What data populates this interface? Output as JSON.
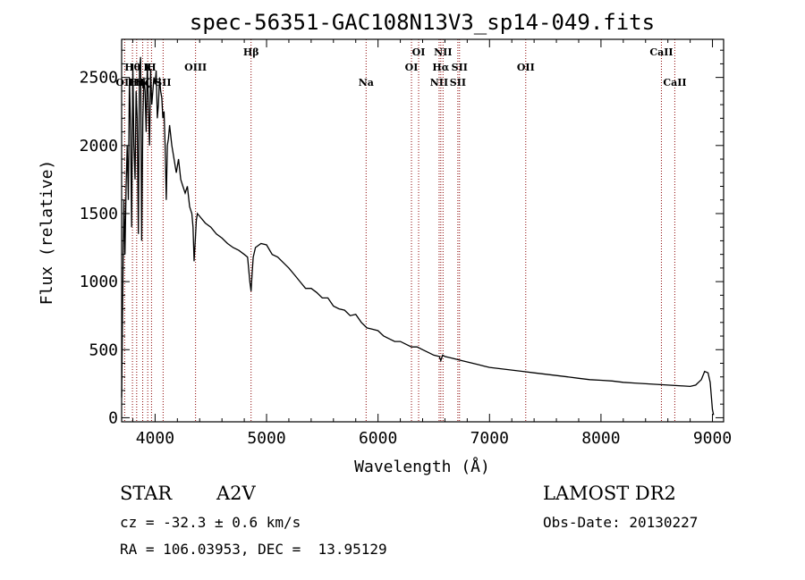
{
  "chart_data": {
    "type": "line",
    "title": "spec-56351-GAC108N13V3_sp14-049.fits",
    "xlabel": "Wavelength (Å)",
    "ylabel": "Flux (relative)",
    "xlim": [
      3700,
      9100
    ],
    "ylim": [
      -30,
      2780
    ],
    "xticks": [
      4000,
      5000,
      6000,
      7000,
      8000,
      9000
    ],
    "yticks": [
      0,
      500,
      1000,
      1500,
      2000,
      2500
    ],
    "grid": false,
    "series": [
      {
        "x": [
          3700,
          3710,
          3720,
          3730,
          3740,
          3750,
          3760,
          3770,
          3780,
          3790,
          3800,
          3810,
          3820,
          3830,
          3840,
          3850,
          3860,
          3870,
          3880,
          3890,
          3900,
          3910,
          3920,
          3930,
          3940,
          3950,
          3960,
          3970,
          3980,
          3990,
          4000,
          4010,
          4020,
          4030,
          4040,
          4050,
          4060,
          4070,
          4080,
          4090,
          4100,
          4110,
          4120,
          4130,
          4150,
          4170,
          4190,
          4210,
          4230,
          4250,
          4270,
          4290,
          4310,
          4330,
          4340,
          4350,
          4360,
          4370,
          4380,
          4400,
          4450,
          4500,
          4550,
          4600,
          4650,
          4700,
          4750,
          4800,
          4830,
          4850,
          4861,
          4870,
          4880,
          4900,
          4950,
          5000,
          5050,
          5100,
          5150,
          5200,
          5250,
          5300,
          5350,
          5400,
          5450,
          5500,
          5550,
          5600,
          5650,
          5700,
          5750,
          5800,
          5850,
          5900,
          5950,
          6000,
          6050,
          6100,
          6150,
          6200,
          6250,
          6300,
          6350,
          6400,
          6450,
          6500,
          6550,
          6563,
          6580,
          6600,
          6650,
          6700,
          6750,
          6800,
          6850,
          6900,
          6950,
          7000,
          7100,
          7200,
          7300,
          7400,
          7500,
          7600,
          7700,
          7800,
          7900,
          8000,
          8100,
          8200,
          8300,
          8400,
          8500,
          8600,
          8700,
          8800,
          8850,
          8900,
          8930,
          8960,
          8980,
          9000,
          9010
        ],
        "y": [
          150,
          900,
          1600,
          1200,
          1700,
          2000,
          1600,
          2500,
          2100,
          1400,
          2600,
          2000,
          1750,
          2400,
          2200,
          1350,
          2550,
          2650,
          1300,
          2200,
          2500,
          2400,
          2100,
          2600,
          2300,
          2000,
          2550,
          2300,
          2400,
          2500,
          2450,
          2550,
          2200,
          2300,
          2500,
          2400,
          2350,
          2200,
          2250,
          2000,
          1600,
          2000,
          2050,
          2150,
          2000,
          1900,
          1800,
          1900,
          1750,
          1700,
          1650,
          1700,
          1550,
          1500,
          1400,
          1150,
          1300,
          1450,
          1500,
          1480,
          1430,
          1400,
          1350,
          1320,
          1280,
          1250,
          1230,
          1200,
          1180,
          1000,
          930,
          1050,
          1180,
          1250,
          1280,
          1270,
          1200,
          1180,
          1140,
          1100,
          1050,
          1000,
          950,
          950,
          920,
          880,
          880,
          820,
          800,
          790,
          750,
          760,
          700,
          660,
          650,
          640,
          600,
          580,
          560,
          560,
          540,
          520,
          520,
          500,
          480,
          460,
          450,
          420,
          460,
          450,
          440,
          430,
          420,
          410,
          400,
          390,
          380,
          370,
          360,
          350,
          340,
          330,
          320,
          310,
          300,
          290,
          280,
          275,
          270,
          260,
          255,
          250,
          245,
          240,
          235,
          230,
          240,
          280,
          340,
          330,
          260,
          60,
          20
        ]
      }
    ],
    "line_markers": [
      {
        "label": "Hθ",
        "wavelength": 3797,
        "row": 1
      },
      {
        "label": "OII",
        "wavelength": 3727,
        "row": 2
      },
      {
        "label": "Hη",
        "wavelength": 3835,
        "row": 2
      },
      {
        "label": "Hζ",
        "wavelength": 3889,
        "row": 2
      },
      {
        "label": "K",
        "wavelength": 3934,
        "row": 1
      },
      {
        "label": "H",
        "wavelength": 3968,
        "row": 1
      },
      {
        "label": "SII",
        "wavelength": 4072,
        "row": 2
      },
      {
        "label": "OIII",
        "wavelength": 4363,
        "row": 1
      },
      {
        "label": "Hβ",
        "wavelength": 4861,
        "row": 0
      },
      {
        "label": "Na",
        "wavelength": 5893,
        "row": 2
      },
      {
        "label": "OI",
        "wavelength": 6300,
        "row": 1
      },
      {
        "label": "OI",
        "wavelength": 6364,
        "row": 0
      },
      {
        "label": "NII",
        "wavelength": 6548,
        "row": 2
      },
      {
        "label": "NII",
        "wavelength": 6583,
        "row": 0
      },
      {
        "label": "Hα",
        "wavelength": 6563,
        "row": 1
      },
      {
        "label": "SII",
        "wavelength": 6716,
        "row": 2
      },
      {
        "label": "SII",
        "wavelength": 6731,
        "row": 1
      },
      {
        "label": "OII",
        "wavelength": 7325,
        "row": 1
      },
      {
        "label": "CaII",
        "wavelength": 8542,
        "row": 0
      },
      {
        "label": "CaII",
        "wavelength": 8662,
        "row": 2
      }
    ]
  },
  "info": {
    "class": "STAR",
    "subclass": "A2V",
    "survey": "LAMOST DR2",
    "cz": "cz = -32.3 ± 0.6 km/s",
    "obs_date": "Obs-Date: 20130227",
    "coords": "RA = 106.03953, DEC =  13.95129"
  }
}
